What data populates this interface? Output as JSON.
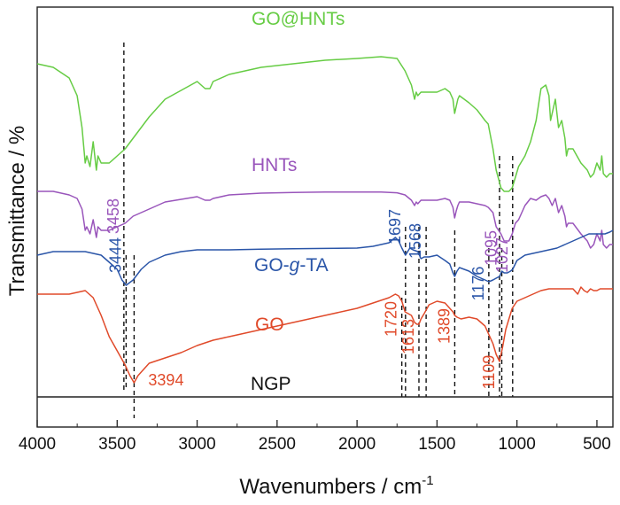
{
  "chart_data": {
    "type": "line",
    "xlabel": "Wavenumbers / cm",
    "xlabel_superscript": "-1",
    "ylabel": "Transmittance / %",
    "xlim": [
      4000,
      400
    ],
    "x_reversed": true,
    "x_ticks": [
      4000,
      3500,
      3000,
      2500,
      2000,
      1500,
      1000,
      500
    ],
    "y_ticks_shown": false,
    "grid": false,
    "series": [
      {
        "name": "GO@HNTs",
        "color": "#66cc44",
        "x": [
          4000,
          3900,
          3800,
          3750,
          3720,
          3700,
          3690,
          3670,
          3650,
          3630,
          3620,
          3600,
          3550,
          3500,
          3450,
          3400,
          3300,
          3200,
          3000,
          2950,
          2920,
          2900,
          2800,
          2600,
          2400,
          2200,
          2000,
          1850,
          1750,
          1700,
          1660,
          1640,
          1630,
          1620,
          1600,
          1500,
          1450,
          1420,
          1400,
          1390,
          1380,
          1370,
          1360,
          1300,
          1250,
          1200,
          1180,
          1150,
          1130,
          1100,
          1080,
          1050,
          1030,
          1010,
          990,
          950,
          915,
          880,
          850,
          820,
          800,
          790,
          780,
          760,
          740,
          720,
          700,
          690,
          680,
          650,
          600,
          560,
          540,
          520,
          500,
          480,
          470,
          460,
          440,
          420,
          400
        ],
        "y": [
          94,
          93,
          90,
          85,
          76,
          66,
          68,
          65,
          72,
          64,
          68,
          66,
          66,
          68,
          70,
          73,
          79,
          84,
          89,
          87,
          87,
          89,
          91,
          93,
          94,
          95,
          95.5,
          96,
          95.5,
          92,
          88,
          84,
          86,
          85,
          86,
          86,
          87,
          86,
          84,
          80,
          82,
          84,
          85,
          83,
          81,
          78,
          77,
          70,
          64,
          59,
          58,
          58,
          59,
          62,
          65,
          68,
          72,
          78,
          87,
          88,
          85,
          78,
          80,
          84,
          76,
          78,
          73,
          68,
          70,
          70,
          66,
          64,
          62,
          63,
          66,
          64,
          68,
          63,
          62,
          63,
          63
        ]
      },
      {
        "name": "HNTs",
        "color": "#9955bb",
        "x": [
          4000,
          3900,
          3800,
          3750,
          3720,
          3700,
          3690,
          3670,
          3650,
          3630,
          3620,
          3600,
          3550,
          3500,
          3450,
          3400,
          3300,
          3200,
          3000,
          2950,
          2920,
          2900,
          2800,
          2600,
          2400,
          2200,
          2000,
          1850,
          1750,
          1700,
          1660,
          1640,
          1630,
          1620,
          1600,
          1500,
          1450,
          1420,
          1400,
          1390,
          1380,
          1370,
          1360,
          1300,
          1250,
          1200,
          1180,
          1150,
          1130,
          1100,
          1080,
          1050,
          1030,
          1010,
          990,
          950,
          915,
          880,
          850,
          820,
          800,
          790,
          780,
          760,
          740,
          720,
          700,
          690,
          680,
          650,
          600,
          560,
          540,
          520,
          500,
          480,
          470,
          460,
          440,
          420,
          400
        ],
        "y": [
          58,
          58,
          57,
          56,
          53,
          47,
          48,
          46,
          50,
          45,
          48,
          47,
          47,
          48,
          49,
          51,
          53,
          55,
          56.5,
          55.5,
          55.5,
          56,
          57,
          57.5,
          57.7,
          57.8,
          57.8,
          57.8,
          57.6,
          57,
          55.5,
          54,
          55,
          54.5,
          55.5,
          55.5,
          56,
          55.5,
          53.5,
          50.5,
          52.5,
          54,
          55,
          55,
          54.5,
          54,
          53.5,
          52,
          48,
          46,
          44,
          44,
          46,
          49,
          50,
          54,
          56,
          55.5,
          56.5,
          57,
          56,
          55,
          54,
          56,
          52,
          54,
          51,
          48,
          49,
          49,
          46,
          44,
          42,
          43,
          46,
          44,
          47,
          43,
          42,
          43,
          43
        ]
      },
      {
        "name": "GO-g-TA",
        "color": "#2a55a8",
        "x": [
          4000,
          3900,
          3800,
          3700,
          3600,
          3550,
          3500,
          3470,
          3444,
          3400,
          3350,
          3300,
          3200,
          3100,
          3000,
          2900,
          2800,
          2600,
          2400,
          2200,
          2000,
          1900,
          1800,
          1760,
          1740,
          1720,
          1697,
          1670,
          1650,
          1620,
          1600,
          1580,
          1568,
          1550,
          1500,
          1450,
          1420,
          1400,
          1389,
          1375,
          1360,
          1300,
          1250,
          1200,
          1176,
          1150,
          1130,
          1109,
          1095,
          1080,
          1060,
          1040,
          1027,
          1000,
          950,
          900,
          850,
          800,
          750,
          700,
          650,
          600,
          550,
          500,
          450,
          420,
          400
        ],
        "y": [
          40,
          41,
          41,
          41,
          40,
          38,
          36,
          33,
          31.5,
          33,
          36,
          38,
          40,
          41,
          41.5,
          41.5,
          41.5,
          41.7,
          41.8,
          41.9,
          42,
          42.5,
          43.5,
          45,
          44,
          42,
          40,
          42,
          41.5,
          41,
          39,
          39.5,
          39.5,
          39.5,
          40,
          38.5,
          37.5,
          35,
          34,
          35.5,
          36.5,
          35.5,
          34,
          33,
          32.5,
          33,
          33.5,
          34,
          35.5,
          35,
          35,
          35.5,
          36,
          38.5,
          40,
          40.5,
          41,
          41.5,
          42,
          43,
          44,
          45,
          46,
          46,
          46,
          46.5,
          47
        ]
      },
      {
        "name": "GO",
        "color": "#e04a2a",
        "x": [
          4000,
          3900,
          3800,
          3700,
          3650,
          3600,
          3550,
          3500,
          3450,
          3420,
          3394,
          3370,
          3330,
          3300,
          3200,
          3100,
          3000,
          2900,
          2800,
          2600,
          2400,
          2200,
          2000,
          1900,
          1800,
          1760,
          1740,
          1720,
          1700,
          1660,
          1640,
          1625,
          1613,
          1600,
          1580,
          1550,
          1500,
          1450,
          1420,
          1400,
          1389,
          1375,
          1350,
          1300,
          1250,
          1200,
          1180,
          1150,
          1130,
          1109,
          1090,
          1070,
          1050,
          1030,
          1000,
          950,
          900,
          850,
          800,
          750,
          700,
          650,
          620,
          600,
          580,
          560,
          540,
          520,
          500,
          480,
          460,
          440,
          420,
          400
        ],
        "y": [
          29,
          29,
          29,
          30,
          28,
          23,
          17,
          13,
          9,
          6,
          4,
          6,
          8,
          9.5,
          11,
          12.5,
          14.5,
          16,
          17,
          19,
          21,
          23,
          25,
          26.5,
          28,
          29,
          28.5,
          27,
          24,
          23,
          21,
          20.5,
          20.5,
          22,
          23.5,
          26,
          27,
          26.5,
          25,
          24,
          23,
          22.5,
          22,
          22.5,
          22,
          20,
          18,
          15,
          12,
          10,
          14,
          19,
          22,
          25,
          27,
          28,
          29,
          30,
          30.5,
          30.5,
          30.5,
          30.5,
          29,
          31,
          30,
          29.5,
          30.5,
          30,
          30,
          30.5,
          30.5,
          30.5,
          30.5,
          30.5
        ]
      },
      {
        "name": "NGP",
        "color": "#222222",
        "x": [
          4000,
          400
        ],
        "y": [
          0,
          0
        ]
      }
    ],
    "series_labels": [
      {
        "series": "GO@HNTs",
        "text": "GO@HNTs"
      },
      {
        "series": "HNTs",
        "text": "HNTs"
      },
      {
        "series": "GO-g-TA",
        "text_before": "GO-",
        "text_italic": "g",
        "text_after": "-TA"
      },
      {
        "series": "GO",
        "text": "GO"
      },
      {
        "series": "NGP",
        "text": "NGP"
      }
    ],
    "reference_lines": [
      {
        "x": 3458,
        "y_from": 2,
        "y_to": 100
      },
      {
        "x": 3444,
        "y_from": 2,
        "y_to": 40
      },
      {
        "x": 3394,
        "y_from": -6,
        "y_to": 40
      },
      {
        "x": 1720,
        "y_from": 0,
        "y_to": 28
      },
      {
        "x": 1697,
        "y_from": 0,
        "y_to": 48
      },
      {
        "x": 1613,
        "y_from": 0,
        "y_to": 48
      },
      {
        "x": 1568,
        "y_from": 0,
        "y_to": 48
      },
      {
        "x": 1389,
        "y_from": 0,
        "y_to": 47
      },
      {
        "x": 1176,
        "y_from": 0,
        "y_to": 42
      },
      {
        "x": 1109,
        "y_from": 0,
        "y_to": 68
      },
      {
        "x": 1095,
        "y_from": 0,
        "y_to": 42
      },
      {
        "x": 1027,
        "y_from": 0,
        "y_to": 68
      }
    ],
    "peak_labels": [
      {
        "text": "3458",
        "x": 3458,
        "y": 51,
        "color": "#9955bb",
        "rotate": -90
      },
      {
        "text": "3444",
        "x": 3444,
        "y": 40,
        "color": "#2a55a8",
        "rotate": -90
      },
      {
        "text": "3394",
        "x": 3394,
        "y": 4,
        "color": "#e04a2a",
        "rotate": 0
      },
      {
        "text": "1720",
        "x": 1720,
        "y": 22,
        "color": "#e04a2a",
        "rotate": -90
      },
      {
        "text": "1697",
        "x": 1697,
        "y": 48,
        "color": "#2a55a8",
        "rotate": -90
      },
      {
        "text": "1613",
        "x": 1613,
        "y": 17,
        "color": "#e04a2a",
        "rotate": -90
      },
      {
        "text": "1568",
        "x": 1568,
        "y": 44,
        "color": "#2a55a8",
        "rotate": -90
      },
      {
        "text": "1389",
        "x": 1389,
        "y": 20,
        "color": "#e04a2a",
        "rotate": -90
      },
      {
        "text": "1176",
        "x": 1176,
        "y": 32,
        "color": "#2a55a8",
        "rotate": -90
      },
      {
        "text": "1109",
        "x": 1109,
        "y": 7,
        "color": "#e04a2a",
        "rotate": -90
      },
      {
        "text": "1095",
        "x": 1095,
        "y": 42,
        "color": "#9955bb",
        "rotate": -90
      },
      {
        "text": "1027",
        "x": 1027,
        "y": 40,
        "color": "#9955bb",
        "rotate": -90
      }
    ]
  }
}
